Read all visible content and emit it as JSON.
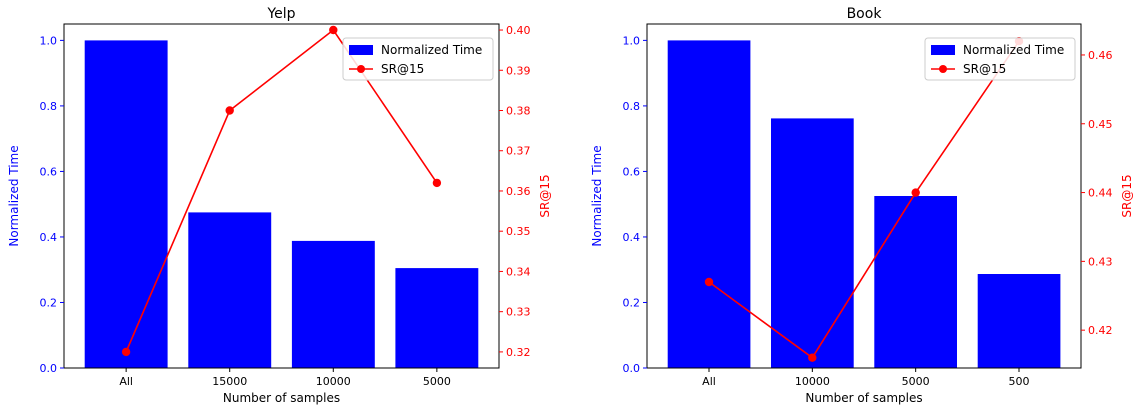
{
  "colors": {
    "bar": "#0000ff",
    "line": "#ff0000",
    "axis": "#000000",
    "left_axis_text": "#0000ff",
    "right_axis_text": "#ff0000"
  },
  "chart_data": [
    {
      "type": "bar",
      "title": "Yelp",
      "xlabel": "Number of samples",
      "ylabel": "Normalized Time",
      "y2label": "SR@15",
      "categories": [
        "All",
        "15000",
        "10000",
        "5000"
      ],
      "ylim": [
        0,
        1.05
      ],
      "yticks": [
        "0.0",
        "0.2",
        "0.4",
        "0.6",
        "0.8",
        "1.0"
      ],
      "y2lim": [
        0.316,
        0.4015
      ],
      "y2ticks": [
        "0.32",
        "0.33",
        "0.34",
        "0.35",
        "0.36",
        "0.37",
        "0.38",
        "0.39",
        "0.40"
      ],
      "legend_position": "top-right",
      "series": [
        {
          "name": "Normalized Time",
          "type": "bar",
          "axis": "left",
          "values": [
            1.0,
            0.475,
            0.388,
            0.305
          ]
        },
        {
          "name": "SR@15",
          "type": "line",
          "axis": "right",
          "values": [
            0.32,
            0.38,
            0.4,
            0.362
          ]
        }
      ]
    },
    {
      "type": "bar",
      "title": "Book",
      "xlabel": "Number of samples",
      "ylabel": "Normalized Time",
      "y2label": "SR@15",
      "categories": [
        "All",
        "10000",
        "5000",
        "500"
      ],
      "ylim": [
        0,
        1.05
      ],
      "yticks": [
        "0.0",
        "0.2",
        "0.4",
        "0.6",
        "0.8",
        "1.0"
      ],
      "y2lim": [
        0.4145,
        0.4645
      ],
      "y2ticks": [
        "0.42",
        "0.43",
        "0.44",
        "0.45",
        "0.46"
      ],
      "legend_position": "top-right",
      "series": [
        {
          "name": "Normalized Time",
          "type": "bar",
          "axis": "left",
          "values": [
            1.0,
            0.762,
            0.525,
            0.287
          ]
        },
        {
          "name": "SR@15",
          "type": "line",
          "axis": "right",
          "values": [
            0.427,
            0.416,
            0.44,
            0.462
          ]
        }
      ]
    }
  ]
}
